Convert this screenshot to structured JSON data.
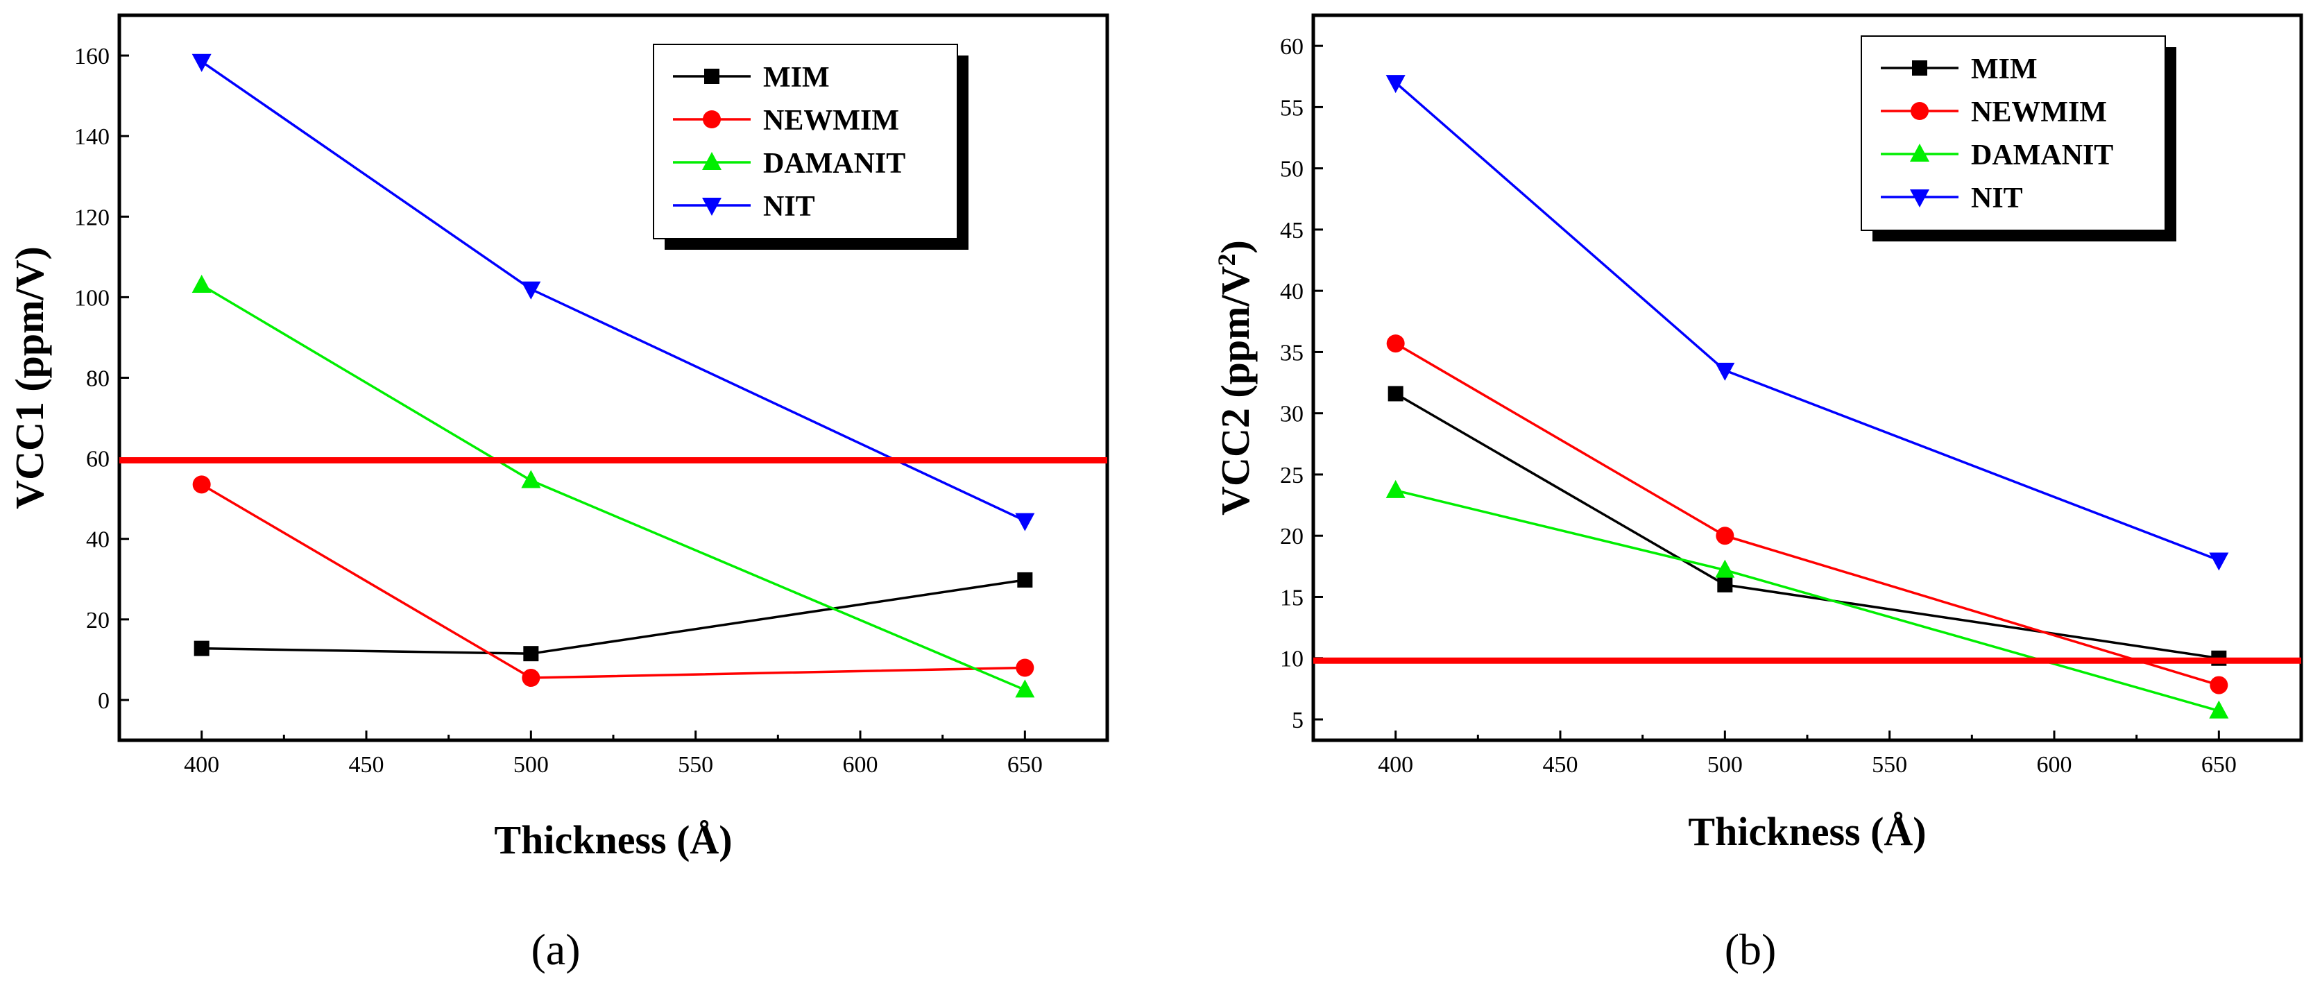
{
  "chart_data": [
    {
      "type": "line",
      "panel_label": "(a)",
      "xlabel": "Thickness (Å)",
      "ylabel": "VCC1 (ppm/V)",
      "ylabel_superscript": "",
      "ylabel_tail": "",
      "xlim": [
        375,
        675
      ],
      "ylim": [
        -10,
        170
      ],
      "x_ticks": [
        400,
        450,
        500,
        550,
        600,
        650
      ],
      "y_ticks": [
        0,
        20,
        40,
        60,
        80,
        100,
        120,
        140,
        160
      ],
      "reference_line": {
        "y": 59.5,
        "color": "#ff0000"
      },
      "legend_position": "top-right",
      "x": [
        400,
        500,
        650
      ],
      "series": [
        {
          "name": "MIM",
          "color": "#000000",
          "marker": "square",
          "values": [
            12.8,
            11.5,
            29.8
          ]
        },
        {
          "name": "NEWMIM",
          "color": "#ff0000",
          "marker": "circle",
          "values": [
            53.5,
            5.5,
            8.0
          ]
        },
        {
          "name": "DAMANIT",
          "color": "#00ee00",
          "marker": "triangle-up",
          "values": [
            103.0,
            54.5,
            2.5
          ]
        },
        {
          "name": "NIT",
          "color": "#0000ff",
          "marker": "triangle-down",
          "values": [
            158.5,
            102.0,
            44.5
          ]
        }
      ]
    },
    {
      "type": "line",
      "panel_label": "(b)",
      "xlabel": "Thickness (Å)",
      "ylabel": "VCC2 (ppm/V",
      "ylabel_superscript": "2",
      "ylabel_tail": ")",
      "xlim": [
        375,
        675
      ],
      "ylim": [
        3.3,
        62.5
      ],
      "x_ticks": [
        400,
        450,
        500,
        550,
        600,
        650
      ],
      "y_ticks": [
        5,
        10,
        15,
        20,
        25,
        30,
        35,
        40,
        45,
        50,
        55,
        60
      ],
      "reference_line": {
        "y": 9.8,
        "color": "#ff0000"
      },
      "legend_position": "top-right",
      "x": [
        400,
        500,
        650
      ],
      "series": [
        {
          "name": "MIM",
          "color": "#000000",
          "marker": "square",
          "values": [
            31.6,
            16.0,
            10.0
          ]
        },
        {
          "name": "NEWMIM",
          "color": "#ff0000",
          "marker": "circle",
          "values": [
            35.7,
            20.0,
            7.8
          ]
        },
        {
          "name": "DAMANIT",
          "color": "#00ee00",
          "marker": "triangle-up",
          "values": [
            23.7,
            17.2,
            5.7
          ]
        },
        {
          "name": "NIT",
          "color": "#0000ff",
          "marker": "triangle-down",
          "values": [
            57.0,
            33.5,
            18.0
          ]
        }
      ]
    }
  ]
}
